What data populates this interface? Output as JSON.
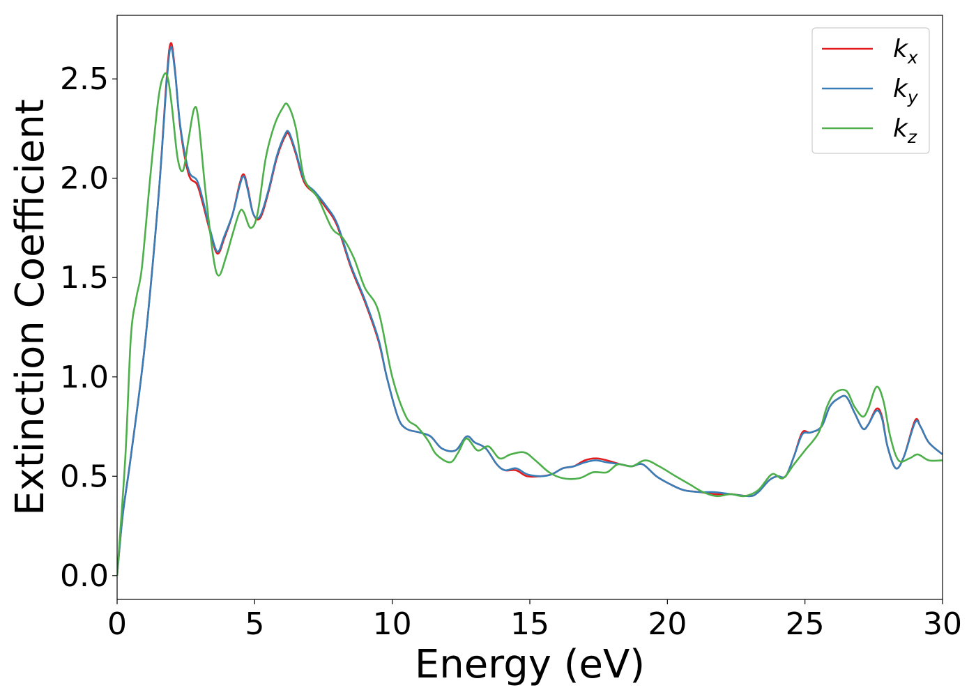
{
  "chart_data": {
    "type": "line",
    "title": "",
    "xlabel": "Energy (eV)",
    "ylabel": "Extinction Coefficient",
    "xlim": [
      0,
      30
    ],
    "ylim": [
      -0.12,
      2.82
    ],
    "xticks": [
      0,
      5,
      10,
      15,
      20,
      25,
      30
    ],
    "yticks": [
      0.0,
      0.5,
      1.0,
      1.5,
      2.0,
      2.5
    ],
    "x_tick_labels": [
      "0",
      "5",
      "10",
      "15",
      "20",
      "25",
      "30"
    ],
    "y_tick_labels": [
      "0.0",
      "0.5",
      "1.0",
      "1.5",
      "2.0",
      "2.5"
    ],
    "grid": false,
    "legend_position": "top-right",
    "series": [
      {
        "name": "k_x",
        "label_base": "k",
        "label_sub": "x",
        "color": "#e41a1c",
        "points": [
          [
            0,
            0
          ],
          [
            0.2,
            0.3
          ],
          [
            0.5,
            0.6
          ],
          [
            1,
            1.15
          ],
          [
            1.5,
            1.9
          ],
          [
            1.8,
            2.5
          ],
          [
            1.95,
            2.68
          ],
          [
            2.1,
            2.55
          ],
          [
            2.3,
            2.25
          ],
          [
            2.6,
            2.02
          ],
          [
            2.9,
            1.97
          ],
          [
            3.1,
            1.88
          ],
          [
            3.4,
            1.72
          ],
          [
            3.65,
            1.62
          ],
          [
            3.9,
            1.7
          ],
          [
            4.2,
            1.82
          ],
          [
            4.45,
            1.97
          ],
          [
            4.6,
            2.02
          ],
          [
            4.75,
            1.95
          ],
          [
            4.95,
            1.82
          ],
          [
            5.2,
            1.8
          ],
          [
            5.5,
            1.93
          ],
          [
            5.8,
            2.1
          ],
          [
            6.1,
            2.21
          ],
          [
            6.25,
            2.22
          ],
          [
            6.5,
            2.12
          ],
          [
            6.8,
            1.98
          ],
          [
            7.2,
            1.92
          ],
          [
            7.6,
            1.85
          ],
          [
            8,
            1.76
          ],
          [
            8.5,
            1.55
          ],
          [
            9,
            1.38
          ],
          [
            9.5,
            1.18
          ],
          [
            9.8,
            1.0
          ],
          [
            10.2,
            0.8
          ],
          [
            10.5,
            0.74
          ],
          [
            11,
            0.72
          ],
          [
            11.4,
            0.7
          ],
          [
            11.8,
            0.64
          ],
          [
            12.3,
            0.63
          ],
          [
            12.7,
            0.7
          ],
          [
            13,
            0.67
          ],
          [
            13.4,
            0.64
          ],
          [
            13.8,
            0.56
          ],
          [
            14.1,
            0.53
          ],
          [
            14.5,
            0.53
          ],
          [
            14.9,
            0.5
          ],
          [
            15.4,
            0.5
          ],
          [
            15.8,
            0.51
          ],
          [
            16.2,
            0.54
          ],
          [
            16.6,
            0.55
          ],
          [
            17,
            0.58
          ],
          [
            17.4,
            0.59
          ],
          [
            17.8,
            0.58
          ],
          [
            18.3,
            0.56
          ],
          [
            18.7,
            0.55
          ],
          [
            19.1,
            0.56
          ],
          [
            19.6,
            0.5
          ],
          [
            20.1,
            0.46
          ],
          [
            20.6,
            0.43
          ],
          [
            21.2,
            0.42
          ],
          [
            21.7,
            0.41
          ],
          [
            22.3,
            0.41
          ],
          [
            23,
            0.4
          ],
          [
            23.3,
            0.42
          ],
          [
            23.7,
            0.48
          ],
          [
            24,
            0.5
          ],
          [
            24.3,
            0.5
          ],
          [
            24.6,
            0.6
          ],
          [
            24.9,
            0.72
          ],
          [
            25.2,
            0.72
          ],
          [
            25.6,
            0.75
          ],
          [
            25.9,
            0.85
          ],
          [
            26.2,
            0.89
          ],
          [
            26.5,
            0.9
          ],
          [
            26.8,
            0.82
          ],
          [
            27.1,
            0.74
          ],
          [
            27.3,
            0.76
          ],
          [
            27.6,
            0.84
          ],
          [
            27.8,
            0.8
          ],
          [
            28,
            0.65
          ],
          [
            28.3,
            0.54
          ],
          [
            28.6,
            0.6
          ],
          [
            29,
            0.78
          ],
          [
            29.2,
            0.75
          ],
          [
            29.5,
            0.67
          ],
          [
            30,
            0.61
          ]
        ]
      },
      {
        "name": "k_y",
        "label_base": "k",
        "label_sub": "y",
        "color": "#377eb8",
        "points": [
          [
            0,
            0
          ],
          [
            0.2,
            0.3
          ],
          [
            0.5,
            0.6
          ],
          [
            1,
            1.15
          ],
          [
            1.5,
            1.9
          ],
          [
            1.8,
            2.48
          ],
          [
            1.95,
            2.66
          ],
          [
            2.1,
            2.54
          ],
          [
            2.3,
            2.26
          ],
          [
            2.6,
            2.04
          ],
          [
            2.9,
            1.99
          ],
          [
            3.1,
            1.9
          ],
          [
            3.4,
            1.73
          ],
          [
            3.65,
            1.63
          ],
          [
            3.9,
            1.71
          ],
          [
            4.2,
            1.82
          ],
          [
            4.45,
            1.96
          ],
          [
            4.6,
            2.01
          ],
          [
            4.75,
            1.94
          ],
          [
            4.95,
            1.82
          ],
          [
            5.2,
            1.81
          ],
          [
            5.5,
            1.94
          ],
          [
            5.8,
            2.11
          ],
          [
            6.1,
            2.22
          ],
          [
            6.25,
            2.23
          ],
          [
            6.5,
            2.13
          ],
          [
            6.8,
            1.99
          ],
          [
            7.2,
            1.93
          ],
          [
            7.6,
            1.86
          ],
          [
            8,
            1.77
          ],
          [
            8.5,
            1.56
          ],
          [
            9,
            1.39
          ],
          [
            9.5,
            1.19
          ],
          [
            9.8,
            1.0
          ],
          [
            10.2,
            0.8
          ],
          [
            10.5,
            0.74
          ],
          [
            11,
            0.72
          ],
          [
            11.4,
            0.7
          ],
          [
            11.8,
            0.64
          ],
          [
            12.3,
            0.63
          ],
          [
            12.7,
            0.7
          ],
          [
            13,
            0.67
          ],
          [
            13.4,
            0.64
          ],
          [
            13.8,
            0.56
          ],
          [
            14.1,
            0.53
          ],
          [
            14.5,
            0.54
          ],
          [
            14.9,
            0.51
          ],
          [
            15.4,
            0.5
          ],
          [
            15.8,
            0.51
          ],
          [
            16.2,
            0.54
          ],
          [
            16.6,
            0.55
          ],
          [
            17,
            0.57
          ],
          [
            17.4,
            0.58
          ],
          [
            17.8,
            0.57
          ],
          [
            18.3,
            0.56
          ],
          [
            18.7,
            0.55
          ],
          [
            19.1,
            0.56
          ],
          [
            19.6,
            0.5
          ],
          [
            20.1,
            0.46
          ],
          [
            20.6,
            0.43
          ],
          [
            21.2,
            0.42
          ],
          [
            21.7,
            0.42
          ],
          [
            22.3,
            0.41
          ],
          [
            23,
            0.4
          ],
          [
            23.3,
            0.42
          ],
          [
            23.7,
            0.48
          ],
          [
            24,
            0.5
          ],
          [
            24.3,
            0.5
          ],
          [
            24.6,
            0.6
          ],
          [
            24.9,
            0.71
          ],
          [
            25.2,
            0.72
          ],
          [
            25.6,
            0.75
          ],
          [
            25.9,
            0.85
          ],
          [
            26.2,
            0.89
          ],
          [
            26.5,
            0.9
          ],
          [
            26.8,
            0.82
          ],
          [
            27.1,
            0.74
          ],
          [
            27.3,
            0.76
          ],
          [
            27.6,
            0.83
          ],
          [
            27.8,
            0.79
          ],
          [
            28,
            0.65
          ],
          [
            28.3,
            0.54
          ],
          [
            28.6,
            0.6
          ],
          [
            29,
            0.77
          ],
          [
            29.2,
            0.75
          ],
          [
            29.5,
            0.67
          ],
          [
            30,
            0.61
          ]
        ]
      },
      {
        "name": "k_z",
        "label_base": "k",
        "label_sub": "z",
        "color": "#4daf4a",
        "points": [
          [
            0,
            0
          ],
          [
            0.3,
            0.6
          ],
          [
            0.5,
            1.2
          ],
          [
            0.7,
            1.4
          ],
          [
            0.9,
            1.55
          ],
          [
            1.2,
            2.0
          ],
          [
            1.5,
            2.4
          ],
          [
            1.7,
            2.52
          ],
          [
            1.85,
            2.5
          ],
          [
            2.0,
            2.35
          ],
          [
            2.2,
            2.1
          ],
          [
            2.4,
            2.04
          ],
          [
            2.6,
            2.2
          ],
          [
            2.8,
            2.35
          ],
          [
            2.95,
            2.3
          ],
          [
            3.2,
            1.95
          ],
          [
            3.5,
            1.6
          ],
          [
            3.7,
            1.51
          ],
          [
            3.95,
            1.6
          ],
          [
            4.2,
            1.72
          ],
          [
            4.45,
            1.83
          ],
          [
            4.6,
            1.83
          ],
          [
            4.85,
            1.75
          ],
          [
            5.1,
            1.82
          ],
          [
            5.4,
            2.1
          ],
          [
            5.7,
            2.26
          ],
          [
            6.0,
            2.35
          ],
          [
            6.2,
            2.37
          ],
          [
            6.5,
            2.25
          ],
          [
            6.8,
            2.0
          ],
          [
            7.3,
            1.9
          ],
          [
            7.8,
            1.75
          ],
          [
            8.2,
            1.7
          ],
          [
            8.6,
            1.6
          ],
          [
            9.0,
            1.45
          ],
          [
            9.5,
            1.33
          ],
          [
            10.0,
            1.0
          ],
          [
            10.5,
            0.8
          ],
          [
            10.9,
            0.75
          ],
          [
            11.3,
            0.68
          ],
          [
            11.6,
            0.61
          ],
          [
            12.1,
            0.57
          ],
          [
            12.4,
            0.62
          ],
          [
            12.7,
            0.69
          ],
          [
            13.1,
            0.63
          ],
          [
            13.5,
            0.65
          ],
          [
            13.9,
            0.59
          ],
          [
            14.3,
            0.61
          ],
          [
            14.8,
            0.62
          ],
          [
            15.2,
            0.58
          ],
          [
            15.7,
            0.52
          ],
          [
            16.2,
            0.49
          ],
          [
            16.8,
            0.49
          ],
          [
            17.3,
            0.52
          ],
          [
            17.8,
            0.52
          ],
          [
            18.2,
            0.56
          ],
          [
            18.7,
            0.55
          ],
          [
            19.2,
            0.58
          ],
          [
            19.7,
            0.55
          ],
          [
            20.3,
            0.5
          ],
          [
            20.8,
            0.46
          ],
          [
            21.3,
            0.42
          ],
          [
            21.8,
            0.4
          ],
          [
            22.3,
            0.41
          ],
          [
            22.8,
            0.4
          ],
          [
            23.3,
            0.43
          ],
          [
            23.8,
            0.51
          ],
          [
            24.2,
            0.49
          ],
          [
            24.6,
            0.56
          ],
          [
            25.0,
            0.63
          ],
          [
            25.5,
            0.72
          ],
          [
            25.8,
            0.85
          ],
          [
            26.1,
            0.92
          ],
          [
            26.5,
            0.93
          ],
          [
            26.8,
            0.85
          ],
          [
            27.1,
            0.8
          ],
          [
            27.3,
            0.84
          ],
          [
            27.6,
            0.95
          ],
          [
            27.85,
            0.88
          ],
          [
            28.1,
            0.7
          ],
          [
            28.4,
            0.58
          ],
          [
            28.8,
            0.59
          ],
          [
            29.1,
            0.61
          ],
          [
            29.5,
            0.58
          ],
          [
            30,
            0.58
          ]
        ]
      }
    ]
  }
}
